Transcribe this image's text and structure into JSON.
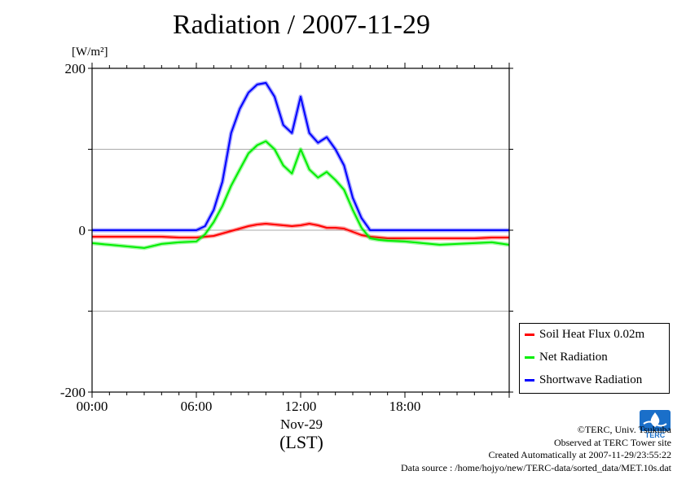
{
  "unit_label": "[W/m²]",
  "chart_data": {
    "type": "line",
    "title": "Radiation / 2007-11-29",
    "ylabel": "[W/m²]",
    "xlabel": "(LST)",
    "x_date_label": "Nov-29",
    "ylim": [
      -200,
      200
    ],
    "xlim": [
      "00:00",
      "24:00"
    ],
    "y_ticks": [
      200,
      0,
      -200
    ],
    "x_ticks": [
      "00:00",
      "06:00",
      "12:00",
      "18:00"
    ],
    "grid": true,
    "legend_position": "bottom-right",
    "x": [
      "00:00",
      "01:00",
      "02:00",
      "03:00",
      "04:00",
      "05:00",
      "06:00",
      "06:30",
      "07:00",
      "07:30",
      "08:00",
      "08:30",
      "09:00",
      "09:30",
      "10:00",
      "10:30",
      "11:00",
      "11:30",
      "12:00",
      "12:30",
      "13:00",
      "13:30",
      "14:00",
      "14:30",
      "15:00",
      "15:30",
      "16:00",
      "16:30",
      "17:00",
      "18:00",
      "19:00",
      "20:00",
      "21:00",
      "22:00",
      "23:00",
      "23:59"
    ],
    "series": [
      {
        "name": "Soil Heat Flux 0.02m",
        "color": "#ff0000",
        "values": [
          -8,
          -8,
          -8,
          -8,
          -8,
          -9,
          -9,
          -8,
          -7,
          -4,
          -1,
          2,
          5,
          7,
          8,
          7,
          6,
          5,
          6,
          8,
          6,
          3,
          3,
          2,
          -2,
          -6,
          -8,
          -9,
          -10,
          -10,
          -10,
          -10,
          -10,
          -10,
          -9,
          -9
        ]
      },
      {
        "name": "Net Radiation",
        "color": "#00ee00",
        "values": [
          -16,
          -18,
          -20,
          -22,
          -17,
          -15,
          -14,
          -5,
          10,
          30,
          55,
          75,
          95,
          105,
          110,
          100,
          80,
          70,
          100,
          75,
          65,
          72,
          62,
          50,
          25,
          3,
          -10,
          -12,
          -13,
          -14,
          -16,
          -18,
          -17,
          -16,
          -15,
          -18
        ]
      },
      {
        "name": "Shortwave Radiation",
        "color": "#0000ff",
        "values": [
          0,
          0,
          0,
          0,
          0,
          0,
          0,
          5,
          25,
          60,
          120,
          150,
          170,
          180,
          182,
          165,
          130,
          120,
          165,
          120,
          108,
          115,
          100,
          80,
          40,
          15,
          0,
          0,
          0,
          0,
          0,
          0,
          0,
          0,
          0,
          0
        ]
      }
    ]
  },
  "credits": {
    "copyright": "©TERC, Univ. Tsukuba",
    "site": "Observed at TERC Tower site",
    "created": "Created Automatically at 2007-11-29/23:55:22",
    "source": "Data source : /home/hojyo/new/TERC-data/sorted_data/MET.10s.dat"
  },
  "logo": {
    "text": "TERC",
    "color": "#1a6fc9"
  }
}
